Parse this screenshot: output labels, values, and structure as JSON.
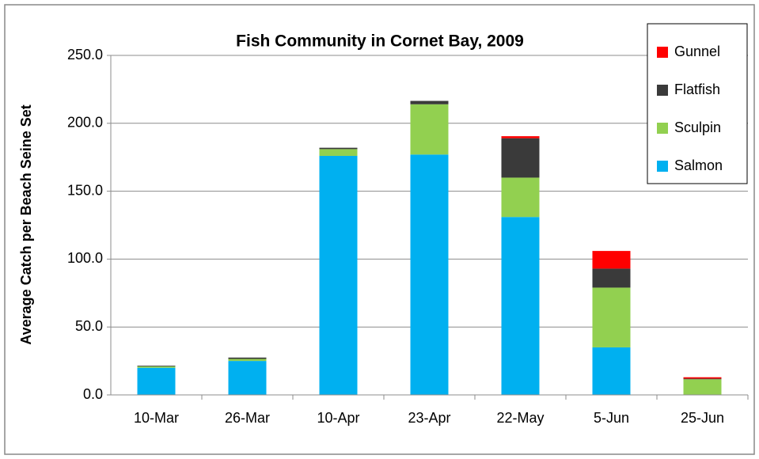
{
  "chart_data": {
    "type": "stacked_bar",
    "title": "Fish Community in Cornet Bay, 2009",
    "y_label": "Average Catch per Beach Seine Set",
    "categories": [
      "10-Mar",
      "26-Mar",
      "10-Apr",
      "23-Apr",
      "22-May",
      "5-Jun",
      "25-Jun"
    ],
    "series": [
      {
        "name": "Salmon",
        "color": "#00b0f0",
        "values": [
          20,
          25,
          176,
          177,
          131,
          35,
          0
        ]
      },
      {
        "name": "Sculpin",
        "color": "#92d050",
        "values": [
          1,
          1.5,
          5,
          37,
          29,
          44,
          11.5
        ]
      },
      {
        "name": "Flatfish",
        "color": "#3a3a3a",
        "values": [
          0.5,
          1,
          1,
          2.5,
          29,
          14,
          0.5
        ]
      },
      {
        "name": "Gunnel",
        "color": "#ff0000",
        "values": [
          0,
          0,
          0,
          0,
          1.5,
          13,
          1
        ]
      }
    ],
    "ylim": [
      0,
      250
    ],
    "yticks": [
      {
        "value": 0,
        "label": "0.0"
      },
      {
        "value": 50,
        "label": "50.0"
      },
      {
        "value": 100,
        "label": "100.0"
      },
      {
        "value": 150,
        "label": "150.0"
      },
      {
        "value": 200,
        "label": "200.0"
      },
      {
        "value": 250,
        "label": "250.0"
      }
    ],
    "grid": true,
    "legend": "upper right"
  }
}
